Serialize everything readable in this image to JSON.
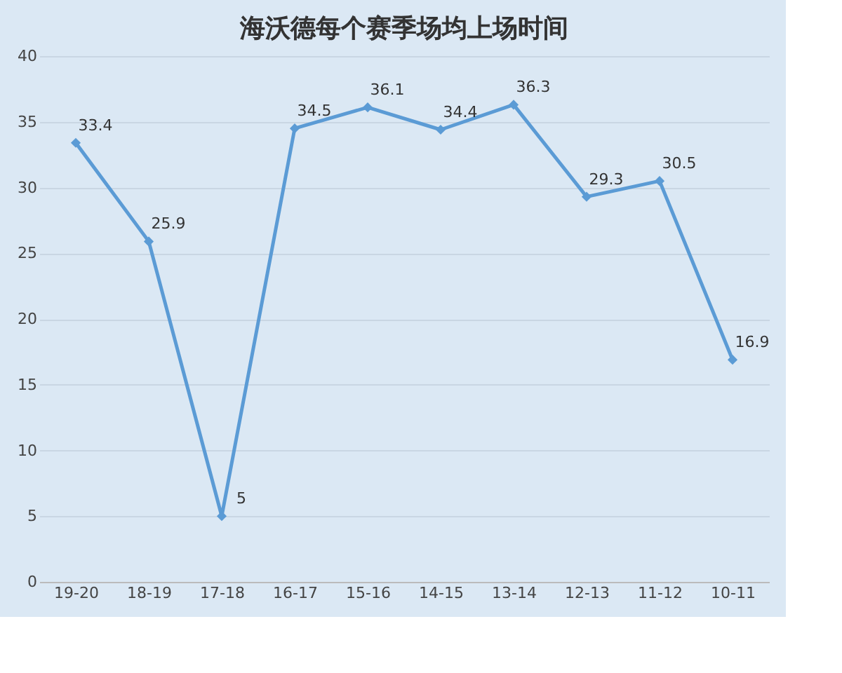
{
  "chart_data": {
    "type": "line",
    "title": "海沃德每个赛季场均上场时间",
    "categories": [
      "19-20",
      "18-19",
      "17-18",
      "16-17",
      "15-16",
      "14-15",
      "13-14",
      "12-13",
      "11-12",
      "10-11"
    ],
    "series": [
      {
        "color": "#5b9bd5",
        "values": [
          33.4,
          25.9,
          5,
          34.5,
          36.1,
          34.4,
          36.3,
          29.3,
          30.5,
          16.9
        ]
      }
    ],
    "ylim": [
      0,
      40
    ],
    "yticks": [
      0,
      5,
      10,
      15,
      20,
      25,
      30,
      35,
      40
    ],
    "grid": "y",
    "marker": "diamond",
    "line_style": "solid",
    "data_labels": true
  }
}
